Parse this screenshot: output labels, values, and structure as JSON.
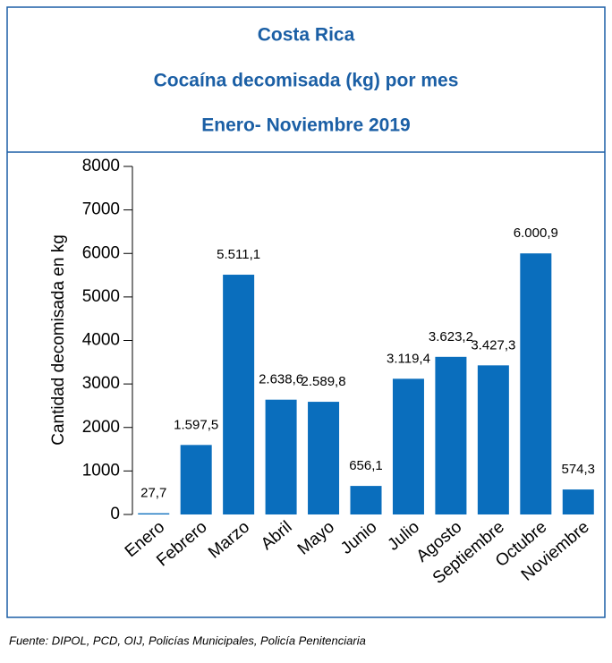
{
  "chart_data": {
    "type": "bar",
    "title": [
      "Costa Rica",
      "Cocaína decomisada (kg) por mes",
      "Enero- Noviembre 2019"
    ],
    "ylabel": "Cantidad decomisada en kg",
    "categories": [
      "Enero",
      "Febrero",
      "Marzo",
      "Abril",
      "Mayo",
      "Junio",
      "Julio",
      "Agosto",
      "Septiembre",
      "Octubre",
      "Noviembre"
    ],
    "values": [
      27.7,
      1597.5,
      5511.1,
      2638.6,
      2589.8,
      656.1,
      3119.4,
      3623.2,
      3427.3,
      6000.9,
      574.3
    ],
    "value_labels": [
      "27,7",
      "1.597,5",
      "5.511,1",
      "2.638,6",
      "2.589,8",
      "656,1",
      "3.119,4",
      "3.623,2",
      "3.427,3",
      "6.000,9",
      "574,3"
    ],
    "color": "#0a6ebd",
    "ylim": [
      0,
      8000
    ],
    "yticks": [
      0,
      1000,
      2000,
      3000,
      4000,
      5000,
      6000,
      7000,
      8000
    ],
    "source": "Fuente: DIPOL, PCD, OIJ, Policías Municipales, Policía Penitenciaria"
  }
}
